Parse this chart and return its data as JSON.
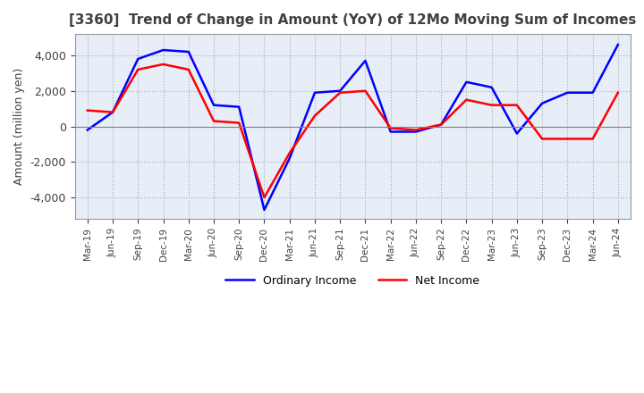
{
  "title": "[3360]  Trend of Change in Amount (YoY) of 12Mo Moving Sum of Incomes",
  "ylabel": "Amount (million yen)",
  "ylim": [
    -5200,
    5200
  ],
  "yticks": [
    -4000,
    -2000,
    0,
    2000,
    4000
  ],
  "x_labels": [
    "Mar-19",
    "Jun-19",
    "Sep-19",
    "Dec-19",
    "Mar-20",
    "Jun-20",
    "Sep-20",
    "Dec-20",
    "Mar-21",
    "Jun-21",
    "Sep-21",
    "Dec-21",
    "Mar-22",
    "Jun-22",
    "Sep-22",
    "Dec-22",
    "Mar-23",
    "Jun-23",
    "Sep-23",
    "Dec-23",
    "Mar-24",
    "Jun-24"
  ],
  "ordinary_income": [
    -200,
    800,
    3800,
    4300,
    4200,
    1200,
    1100,
    -4700,
    -1800,
    1900,
    2000,
    3700,
    -300,
    -300,
    100,
    2500,
    2200,
    -400,
    1300,
    1900,
    1900,
    4600
  ],
  "net_income": [
    900,
    800,
    3200,
    3500,
    3200,
    300,
    200,
    -4000,
    -1500,
    600,
    1900,
    2000,
    -100,
    -200,
    100,
    1500,
    1200,
    1200,
    -700,
    -700,
    -700,
    1900
  ],
  "ordinary_color": "#0000ff",
  "net_color": "#ff0000",
  "grid_color": "#aaaaaa",
  "plot_bg_color": "#e8eef8",
  "background_color": "#ffffff",
  "legend_labels": [
    "Ordinary Income",
    "Net Income"
  ],
  "line_width": 1.8,
  "title_color": "#404040",
  "title_fontsize": 11,
  "zero_line_color": "#808080"
}
